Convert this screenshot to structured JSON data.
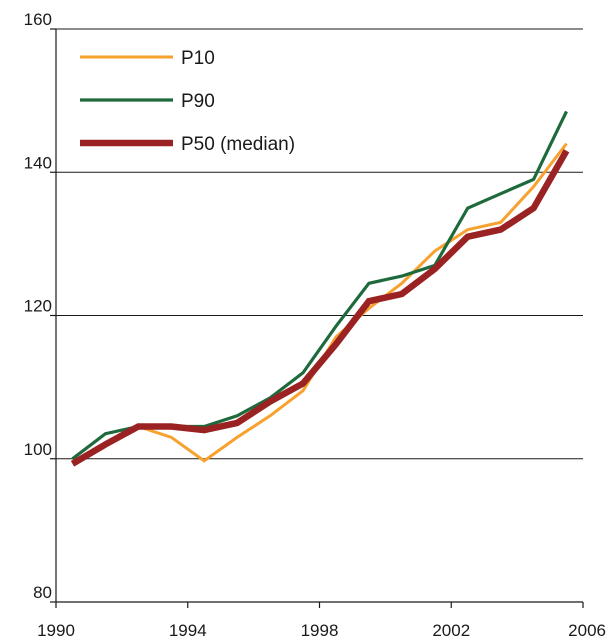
{
  "chart_data": {
    "type": "line",
    "title": "",
    "xlabel": "",
    "ylabel": "",
    "xlim": [
      1990,
      2006
    ],
    "ylim": [
      80,
      160
    ],
    "x_ticks": [
      1990,
      1994,
      1998,
      2002,
      2006
    ],
    "y_ticks": [
      80,
      100,
      120,
      140,
      160
    ],
    "grid": "horizontal",
    "legend_position": "top-left",
    "series": [
      {
        "name": "P10",
        "color": "#f7a12e",
        "x": [
          1990.5,
          1991.5,
          1992.5,
          1993.5,
          1994.5,
          1995.5,
          1996.5,
          1997.5,
          1998.5,
          1999.5,
          2000.5,
          2001.5,
          2002.5,
          2003.5,
          2004.5,
          2005.5
        ],
        "y": [
          99.5,
          102,
          104.5,
          103,
          99.7,
          103,
          106,
          109.5,
          117,
          121,
          124.5,
          129,
          132,
          133,
          138,
          144
        ]
      },
      {
        "name": "P90",
        "color": "#1e6a3c",
        "x": [
          1990.5,
          1991.5,
          1992.5,
          1993.5,
          1994.5,
          1995.5,
          1996.5,
          1997.5,
          1998.5,
          1999.5,
          2000.5,
          2001.5,
          2002.5,
          2003.5,
          2004.5,
          2005.5
        ],
        "y": [
          100,
          103.5,
          104.5,
          104.5,
          104.5,
          106,
          108.5,
          112,
          118.5,
          124.5,
          125.5,
          127,
          135,
          137,
          139,
          148.5
        ]
      },
      {
        "name": "P50 (median)",
        "color": "#9b2222",
        "x": [
          1990.5,
          1991.5,
          1992.5,
          1993.5,
          1994.5,
          1995.5,
          1996.5,
          1997.5,
          1998.5,
          1999.5,
          2000.5,
          2001.5,
          2002.5,
          2003.5,
          2004.5,
          2005.5
        ],
        "y": [
          99.3,
          102,
          104.5,
          104.5,
          104,
          105,
          108,
          110.5,
          116,
          122,
          123,
          126.5,
          131,
          132,
          135,
          143
        ]
      }
    ]
  }
}
